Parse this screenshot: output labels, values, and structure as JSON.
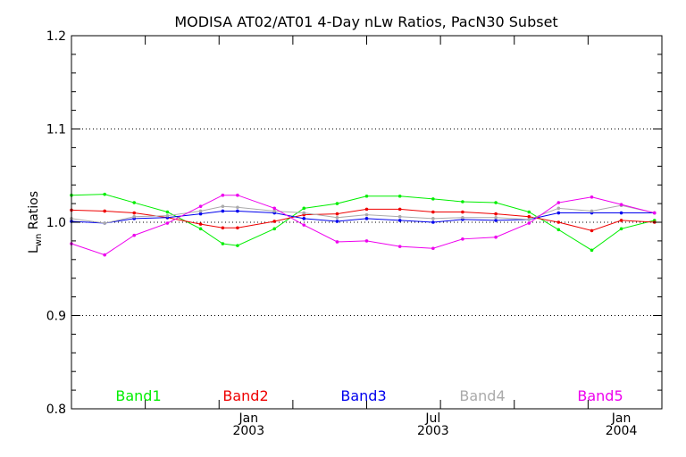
{
  "chart_data": {
    "type": "line",
    "title": "MODISA AT02/AT01 4-Day nLw Ratios, PacN30 Subset",
    "ylabel_main": "L",
    "ylabel_sub": "wn",
    "ylabel_rest": " Ratios",
    "xlabel": "",
    "ylim": [
      0.8,
      1.2
    ],
    "xlim": [
      0,
      16
    ],
    "y_ticks": [
      {
        "value": 0.8,
        "label": "0.8"
      },
      {
        "value": 0.9,
        "label": "0.9"
      },
      {
        "value": 1.0,
        "label": "1.0"
      },
      {
        "value": 1.1,
        "label": "1.1"
      },
      {
        "value": 1.2,
        "label": "1.2"
      }
    ],
    "y_minor_step": 0.02,
    "x_major_ticks": [
      0,
      2,
      4,
      6,
      8,
      10,
      12,
      14,
      16
    ],
    "x_labels": [
      {
        "value": 4.8,
        "month": "Jan",
        "year": "2003"
      },
      {
        "value": 9.8,
        "month": "Jul",
        "year": "2003"
      },
      {
        "value": 14.9,
        "month": "Jan",
        "year": "2004"
      }
    ],
    "reference_lines": [
      0.9,
      1.0,
      1.1
    ],
    "grid": "dotted horizontal at 0.9, 1.0, 1.1",
    "x": [
      0,
      0.9,
      1.7,
      2.6,
      3.5,
      4.1,
      4.5,
      5.5,
      6.3,
      7.2,
      8.0,
      8.9,
      9.8,
      10.6,
      11.5,
      12.4,
      13.2,
      14.1,
      14.9,
      15.8
    ],
    "series": [
      {
        "name": "Band1",
        "color": "#00ee00",
        "values": [
          1.029,
          1.03,
          1.021,
          1.011,
          0.993,
          0.977,
          0.975,
          0.993,
          1.015,
          1.02,
          1.028,
          1.028,
          1.025,
          1.022,
          1.021,
          1.011,
          0.992,
          0.97,
          0.993,
          1.002
        ]
      },
      {
        "name": "Band2",
        "color": "#ee0000",
        "values": [
          1.013,
          1.012,
          1.01,
          1.005,
          0.998,
          0.994,
          0.994,
          1.001,
          1.008,
          1.009,
          1.014,
          1.014,
          1.011,
          1.011,
          1.009,
          1.006,
          1.0,
          0.991,
          1.002,
          1.0
        ]
      },
      {
        "name": "Band3",
        "color": "#0000ee",
        "values": [
          1.001,
          0.999,
          1.004,
          1.005,
          1.009,
          1.012,
          1.012,
          1.01,
          1.004,
          1.001,
          1.004,
          1.002,
          1.0,
          1.003,
          1.002,
          1.003,
          1.01,
          1.01,
          1.01,
          1.01
        ]
      },
      {
        "name": "Band4",
        "color": "#aaaaaa",
        "values": [
          1.004,
          0.999,
          1.006,
          1.007,
          1.012,
          1.017,
          1.016,
          1.012,
          1.01,
          1.005,
          1.008,
          1.006,
          1.004,
          1.005,
          1.005,
          1.003,
          1.015,
          1.012,
          1.018,
          1.01
        ]
      },
      {
        "name": "Band5",
        "color": "#ee00ee",
        "values": [
          0.977,
          0.965,
          0.986,
          0.999,
          1.017,
          1.029,
          1.029,
          1.015,
          0.997,
          0.979,
          0.98,
          0.974,
          0.972,
          0.982,
          0.984,
          0.999,
          1.021,
          1.027,
          1.019,
          1.01
        ]
      }
    ],
    "legend": {
      "placement": "bottom inside plot"
    }
  }
}
